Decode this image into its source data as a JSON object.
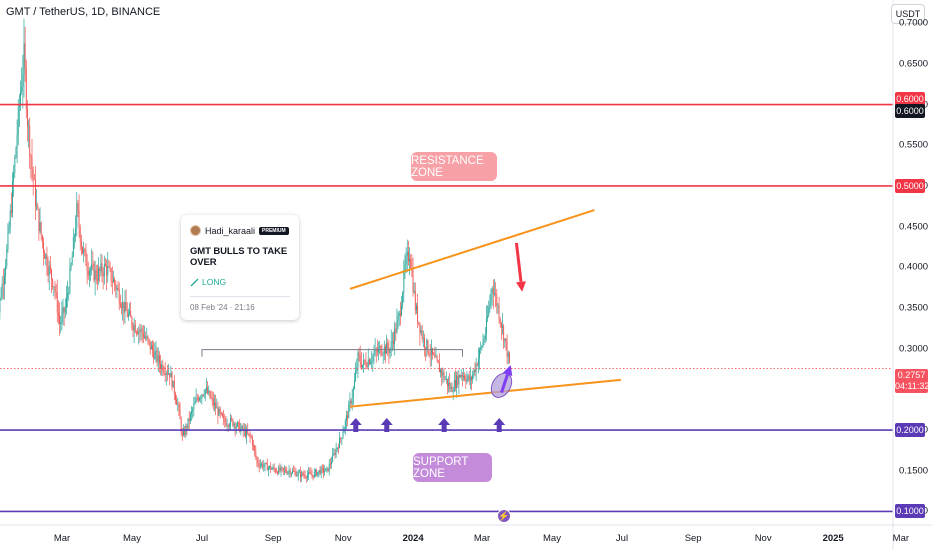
{
  "header": {
    "symbol_title": "GMT / TetherUS, 1D, BINANCE",
    "currency_label": "USDT"
  },
  "annotations": {
    "resistance_label": "RESISTANCE ZONE",
    "support_label": "SUPPORT ZONE"
  },
  "idea": {
    "author": "Hadi_karaali",
    "badge": "PREMIUM",
    "title": "GMT BULLS TO TAKE OVER",
    "direction": "LONG",
    "date": "08 Feb '24 · 21:16"
  },
  "price_badges": [
    {
      "label": "0.6000",
      "style": "red"
    },
    {
      "label": "0.6000",
      "style": "black"
    },
    {
      "label": "0.5000",
      "style": "red"
    },
    {
      "label": "0.2000",
      "style": "purple"
    },
    {
      "label": "0.1000",
      "style": "purple"
    }
  ],
  "last_price": {
    "value": "0.2757",
    "countdown": "04:11:32"
  },
  "colors": {
    "up": "#26a69a",
    "down": "#ef5350",
    "resistance": "#f23645",
    "support": "#5b3bb5",
    "trendline": "#f7931a"
  },
  "chart_data": {
    "type": "candlestick",
    "y_ticks": [
      "0.7000",
      "0.6500",
      "0.6000",
      "0.5500",
      "0.5000",
      "0.4500",
      "0.4000",
      "0.3500",
      "0.3000",
      "0.2500",
      "0.2000",
      "0.1500",
      "0.1000"
    ],
    "x_ticks": [
      {
        "label": "Mar",
        "bold": false
      },
      {
        "label": "May",
        "bold": false
      },
      {
        "label": "Jul",
        "bold": false
      },
      {
        "label": "Sep",
        "bold": false
      },
      {
        "label": "Nov",
        "bold": false
      },
      {
        "label": "2024",
        "bold": true
      },
      {
        "label": "Mar",
        "bold": false
      },
      {
        "label": "May",
        "bold": false
      },
      {
        "label": "Jul",
        "bold": false
      },
      {
        "label": "Sep",
        "bold": false
      },
      {
        "label": "Nov",
        "bold": false
      },
      {
        "label": "2025",
        "bold": true
      },
      {
        "label": "Mar",
        "bold": false
      }
    ],
    "ylim": [
      0.0833,
      0.7285
    ],
    "resistance_levels": [
      0.6,
      0.5
    ],
    "support_levels": [
      0.2,
      0.1
    ],
    "last_close": 0.2757,
    "price_path": [
      [
        "2023-01-01",
        0.3
      ],
      [
        "2023-01-06",
        0.36
      ],
      [
        "2023-01-12",
        0.42
      ],
      [
        "2023-01-16",
        0.48
      ],
      [
        "2023-01-20",
        0.55
      ],
      [
        "2023-01-24",
        0.62
      ],
      [
        "2023-01-27",
        0.66
      ],
      [
        "2023-01-30",
        0.58
      ],
      [
        "2023-02-03",
        0.52
      ],
      [
        "2023-02-07",
        0.47
      ],
      [
        "2023-02-12",
        0.43
      ],
      [
        "2023-02-17",
        0.4
      ],
      [
        "2023-02-22",
        0.38
      ],
      [
        "2023-02-27",
        0.33
      ],
      [
        "2023-03-04",
        0.35
      ],
      [
        "2023-03-09",
        0.4
      ],
      [
        "2023-03-14",
        0.47
      ],
      [
        "2023-03-19",
        0.42
      ],
      [
        "2023-03-24",
        0.4
      ],
      [
        "2023-03-31",
        0.39
      ],
      [
        "2023-04-08",
        0.4
      ],
      [
        "2023-04-16",
        0.38
      ],
      [
        "2023-04-24",
        0.35
      ],
      [
        "2023-05-02",
        0.33
      ],
      [
        "2023-05-10",
        0.32
      ],
      [
        "2023-05-18",
        0.3
      ],
      [
        "2023-05-26",
        0.28
      ],
      [
        "2023-06-03",
        0.27
      ],
      [
        "2023-06-10",
        0.23
      ],
      [
        "2023-06-14",
        0.19
      ],
      [
        "2023-06-19",
        0.21
      ],
      [
        "2023-06-27",
        0.24
      ],
      [
        "2023-07-04",
        0.25
      ],
      [
        "2023-07-12",
        0.23
      ],
      [
        "2023-07-20",
        0.21
      ],
      [
        "2023-07-28",
        0.21
      ],
      [
        "2023-08-05",
        0.2
      ],
      [
        "2023-08-13",
        0.19
      ],
      [
        "2023-08-18",
        0.16
      ],
      [
        "2023-08-26",
        0.155
      ],
      [
        "2023-09-05",
        0.15
      ],
      [
        "2023-09-15",
        0.15
      ],
      [
        "2023-09-25",
        0.145
      ],
      [
        "2023-10-05",
        0.145
      ],
      [
        "2023-10-12",
        0.15
      ],
      [
        "2023-10-18",
        0.15
      ],
      [
        "2023-10-24",
        0.17
      ],
      [
        "2023-10-30",
        0.19
      ],
      [
        "2023-11-05",
        0.22
      ],
      [
        "2023-11-10",
        0.25
      ],
      [
        "2023-11-14",
        0.29
      ],
      [
        "2023-11-18",
        0.28
      ],
      [
        "2023-11-26",
        0.29
      ],
      [
        "2023-12-04",
        0.3
      ],
      [
        "2023-12-12",
        0.3
      ],
      [
        "2023-12-20",
        0.34
      ],
      [
        "2023-12-25",
        0.4
      ],
      [
        "2023-12-29",
        0.42
      ],
      [
        "2024-01-03",
        0.35
      ],
      [
        "2024-01-10",
        0.31
      ],
      [
        "2024-01-18",
        0.29
      ],
      [
        "2024-01-26",
        0.27
      ],
      [
        "2024-02-03",
        0.25
      ],
      [
        "2024-02-12",
        0.27
      ],
      [
        "2024-02-20",
        0.26
      ],
      [
        "2024-02-27",
        0.29
      ],
      [
        "2024-03-04",
        0.32
      ],
      [
        "2024-03-10",
        0.38
      ],
      [
        "2024-03-15",
        0.35
      ],
      [
        "2024-03-21",
        0.31
      ],
      [
        "2024-03-25",
        0.28
      ]
    ],
    "drawings": {
      "upper_trendline": [
        [
          "2023-11-07",
          0.3735
        ],
        [
          "2024-06-07",
          0.4704
        ]
      ],
      "lower_trendline": [
        [
          "2023-11-07",
          0.2287
        ],
        [
          "2024-06-30",
          0.2617
        ]
      ],
      "idea_marker_bracket": [
        [
          "2023-07-01",
          0.2988
        ],
        [
          "2024-02-13",
          0.2988
        ]
      ],
      "arrow_down": [
        [
          "2024-03-31",
          0.43
        ],
        [
          "2024-04-05",
          0.37
        ]
      ],
      "arrow_up": [
        [
          "2024-03-18",
          0.246
        ],
        [
          "2024-03-26",
          0.28
        ]
      ],
      "support_arrows": [
        "2023-11-12",
        "2023-12-09",
        "2024-01-28",
        "2024-03-16"
      ],
      "highlight_ellipse": [
        "2024-03-18",
        0.255
      ]
    }
  }
}
